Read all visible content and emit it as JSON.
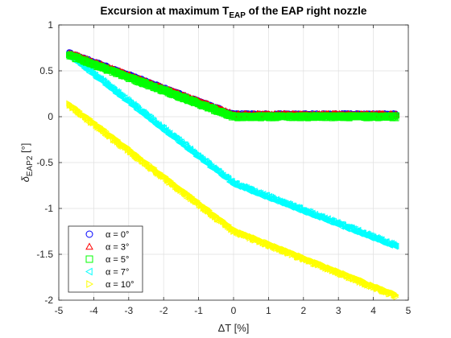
{
  "chart_data": {
    "type": "scatter",
    "title_main": "Excursion at maximum T",
    "title_sub": "EAP",
    "title_tail": " of the EAP right nozzle",
    "xlabel": "ΔT [%]",
    "ylabel_main": "δ",
    "ylabel_sub": "EAP2",
    "ylabel_tail": " [°]",
    "xlim": [
      -5,
      5
    ],
    "ylim": [
      -2,
      1
    ],
    "xticks": [
      -5,
      -4,
      -3,
      -2,
      -1,
      0,
      1,
      2,
      3,
      4,
      5
    ],
    "xtick_labels": [
      "-5",
      "-4",
      "-3",
      "-2",
      "-1",
      "0",
      "1",
      "2",
      "3",
      "4",
      "5"
    ],
    "yticks": [
      1,
      0.5,
      0,
      -0.5,
      -1,
      -1.5,
      -2
    ],
    "ytick_labels": [
      "1",
      "0.5",
      "0",
      "-0.5",
      "-1",
      "-1.5",
      "-2"
    ],
    "grid": true,
    "legend_position": "bottom-left",
    "series": [
      {
        "name": "α = 0°",
        "marker": "circle",
        "color": "#0000ff",
        "x": [
          -4.7,
          0,
          4.65
        ],
        "y": [
          0.69,
          0.02,
          0.02
        ]
      },
      {
        "name": "α = 3°",
        "marker": "triangle-up",
        "color": "#ff0000",
        "x": [
          -4.7,
          0,
          4.65
        ],
        "y": [
          0.69,
          0.02,
          0.02
        ]
      },
      {
        "name": "α = 5°",
        "marker": "square",
        "color": "#00ff00",
        "x": [
          -4.7,
          0,
          4.65
        ],
        "y": [
          0.67,
          0.0,
          0.0
        ]
      },
      {
        "name": "α = 7°",
        "marker": "triangle-left",
        "color": "#00ffff",
        "x": [
          -4.7,
          0,
          4.65
        ],
        "y": [
          0.67,
          -0.73,
          -1.41
        ]
      },
      {
        "name": "α = 10°",
        "marker": "triangle-right",
        "color": "#ffff00",
        "x": [
          -4.7,
          0,
          4.65
        ],
        "y": [
          0.13,
          -1.24,
          -1.95
        ]
      }
    ]
  }
}
